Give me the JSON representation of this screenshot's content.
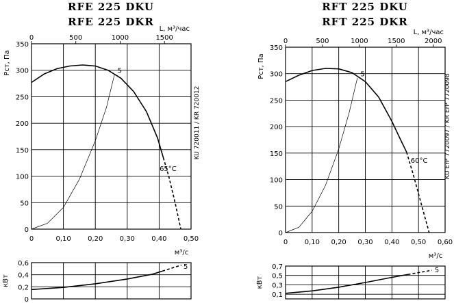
{
  "chart_data": [
    {
      "type": "line",
      "id": "rfe",
      "title_lines": [
        "RFE 225 DKU",
        "RFE 225 DKR"
      ],
      "xlabel": "м³/с",
      "ylabel": "Pст, Па",
      "top_axis_label": "L, м³/час",
      "side_label": "KU 720011 / KR 720012",
      "xlim": [
        0,
        0.5
      ],
      "ylim": [
        0,
        350
      ],
      "x_ticks": [
        0,
        0.1,
        0.2,
        0.3,
        0.4,
        0.5
      ],
      "x_tick_labels": [
        "0",
        "0,10",
        "0,20",
        "0,30",
        "0,40",
        "0,50"
      ],
      "y_ticks": [
        0,
        50,
        100,
        150,
        200,
        250,
        300,
        350
      ],
      "y_tick_labels": [
        "0",
        "50",
        "100",
        "150",
        "200",
        "250",
        "300",
        "350"
      ],
      "top_ticks": [
        0,
        500,
        1000,
        1500
      ],
      "top_tick_labels": [
        "0",
        "500",
        "1000",
        "1500"
      ],
      "top_max": 1800,
      "series": [
        {
          "role": "pressure",
          "style": "solid",
          "points": [
            [
              0,
              277
            ],
            [
              0.04,
              293
            ],
            [
              0.08,
              303
            ],
            [
              0.12,
              308
            ],
            [
              0.16,
              310
            ],
            [
              0.2,
              308
            ],
            [
              0.24,
              300
            ],
            [
              0.28,
              285
            ],
            [
              0.32,
              260
            ],
            [
              0.36,
              222
            ],
            [
              0.395,
              172
            ],
            [
              0.413,
              135
            ]
          ]
        },
        {
          "role": "pressure",
          "style": "dashed",
          "points": [
            [
              0.413,
              135
            ],
            [
              0.43,
              100
            ],
            [
              0.45,
              50
            ],
            [
              0.468,
              0
            ]
          ]
        },
        {
          "role": "system",
          "style": "thin",
          "points": [
            [
              0,
              0
            ],
            [
              0.05,
              11
            ],
            [
              0.1,
              41
            ],
            [
              0.15,
              94
            ],
            [
              0.2,
              167
            ],
            [
              0.235,
              230
            ],
            [
              0.26,
              292
            ]
          ]
        }
      ],
      "annotations": [
        {
          "text": "5",
          "x": 0.263,
          "y": 300
        },
        {
          "text": "65°C",
          "x": 0.395,
          "y": 115
        }
      ],
      "power": {
        "ylabel": "кВт",
        "ylim": [
          0,
          0.6
        ],
        "y_ticks": [
          0,
          0.2,
          0.4,
          0.6
        ],
        "y_tick_labels": [
          "0",
          "0,2",
          "0,4",
          "0,6"
        ],
        "solid": [
          [
            0,
            0.155
          ],
          [
            0.1,
            0.19
          ],
          [
            0.2,
            0.25
          ],
          [
            0.3,
            0.33
          ],
          [
            0.38,
            0.41
          ],
          [
            0.41,
            0.46
          ]
        ],
        "dashed": [
          [
            0.41,
            0.46
          ],
          [
            0.47,
            0.56
          ]
        ],
        "label": {
          "text": "5",
          "x": 0.472,
          "y": 0.52
        }
      }
    },
    {
      "type": "line",
      "id": "rft",
      "title_lines": [
        "RFT 225 DKU",
        "RFT 225 DKR"
      ],
      "xlabel": "м³/с",
      "ylabel": "Pст, Па",
      "top_axis_label": "L, м³/час",
      "side_label": "KU ErP 7720097 / KR ErP 7720098",
      "xlim": [
        0,
        0.6
      ],
      "ylim": [
        0,
        350
      ],
      "x_ticks": [
        0,
        0.1,
        0.2,
        0.3,
        0.4,
        0.5,
        0.6
      ],
      "x_tick_labels": [
        "0",
        "0,10",
        "0,20",
        "0,30",
        "0,40",
        "0,50",
        "0,60"
      ],
      "y_ticks": [
        0,
        50,
        100,
        150,
        200,
        250,
        300,
        350
      ],
      "y_tick_labels": [
        "0",
        "50",
        "100",
        "150",
        "200",
        "250",
        "300",
        "350"
      ],
      "top_ticks": [
        0,
        500,
        1000,
        1500,
        2000
      ],
      "top_tick_labels": [
        "0",
        "500",
        "1000",
        "1500",
        "2000"
      ],
      "top_max": 2160,
      "series": [
        {
          "role": "pressure",
          "style": "solid",
          "points": [
            [
              0,
              285
            ],
            [
              0.05,
              297
            ],
            [
              0.1,
              306
            ],
            [
              0.15,
              310
            ],
            [
              0.2,
              309
            ],
            [
              0.25,
              302
            ],
            [
              0.3,
              285
            ],
            [
              0.35,
              256
            ],
            [
              0.4,
              210
            ],
            [
              0.43,
              178
            ],
            [
              0.455,
              152
            ]
          ]
        },
        {
          "role": "pressure",
          "style": "dashed",
          "points": [
            [
              0.455,
              152
            ],
            [
              0.48,
              110
            ],
            [
              0.51,
              55
            ],
            [
              0.54,
              0
            ]
          ]
        },
        {
          "role": "system",
          "style": "thin",
          "points": [
            [
              0,
              0
            ],
            [
              0.05,
              10
            ],
            [
              0.1,
              40
            ],
            [
              0.15,
              89
            ],
            [
              0.2,
              158
            ],
            [
              0.24,
              228
            ],
            [
              0.27,
              292
            ]
          ]
        }
      ],
      "annotations": [
        {
          "text": "5",
          "x": 0.274,
          "y": 300
        },
        {
          "text": "60°C",
          "x": 0.463,
          "y": 137
        }
      ],
      "power": {
        "ylabel": "кВт",
        "ylim": [
          0,
          0.7
        ],
        "y_ticks": [
          0.1,
          0.3,
          0.5,
          0.7
        ],
        "y_tick_labels": [
          "0,1",
          "0,3",
          "0,5",
          "0,7"
        ],
        "solid": [
          [
            0,
            0.12
          ],
          [
            0.1,
            0.17
          ],
          [
            0.2,
            0.25
          ],
          [
            0.3,
            0.35
          ],
          [
            0.4,
            0.46
          ],
          [
            0.46,
            0.52
          ]
        ],
        "dashed": [
          [
            0.46,
            0.52
          ],
          [
            0.55,
            0.61
          ]
        ],
        "label": {
          "text": "5",
          "x": 0.556,
          "y": 0.6
        }
      }
    }
  ]
}
